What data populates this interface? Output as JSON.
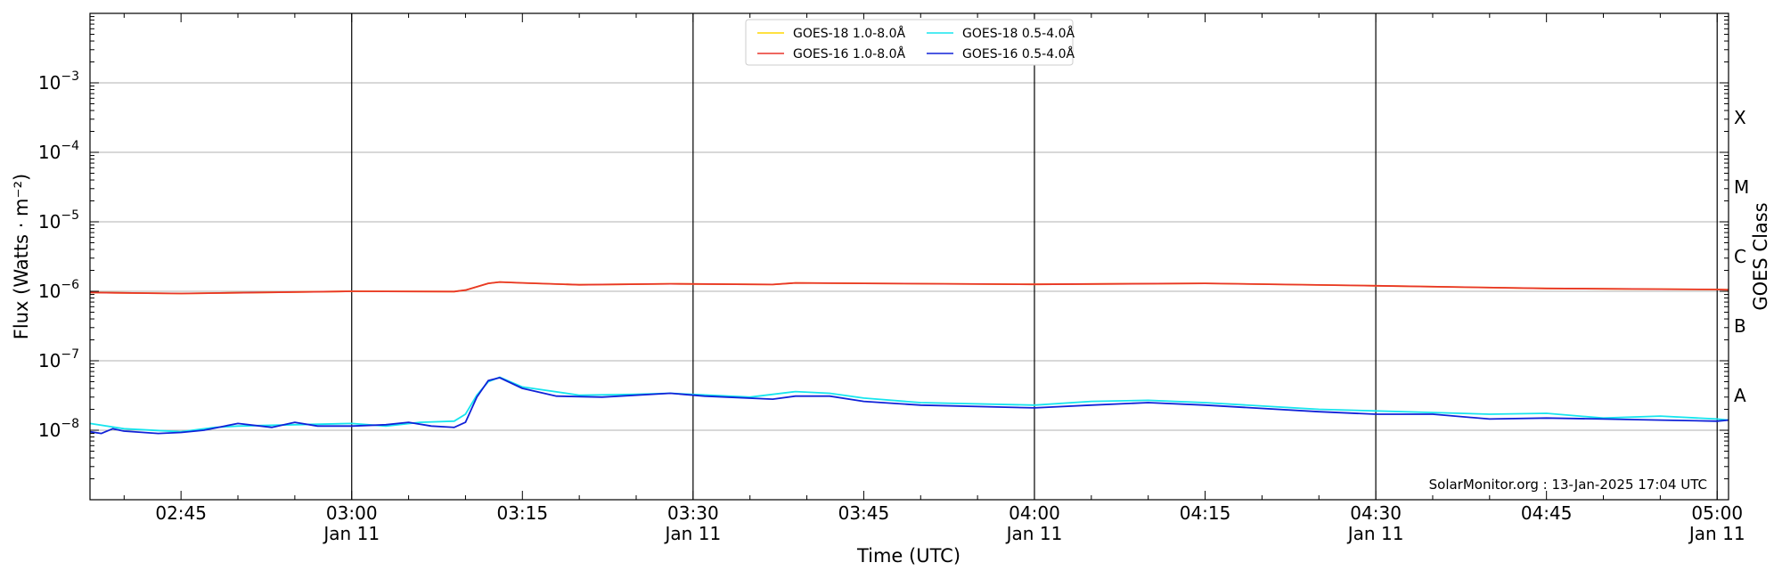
{
  "chart_data": {
    "type": "line",
    "xlabel": "Time (UTC)",
    "ylabel": "Flux (Watts · m⁻²)",
    "ylabel_right": "GOES Class",
    "y_scale": "log",
    "ylim": [
      1e-09,
      0.01
    ],
    "xlim": [
      "02:37",
      "05:01"
    ],
    "grid": "horizontal at major y ticks; vertical lines every 30 minutes",
    "legend_position": "top-center",
    "y_ticks": [
      {
        "value": 1e-08,
        "base": "10",
        "exp": "−8"
      },
      {
        "value": 1e-07,
        "base": "10",
        "exp": "−7"
      },
      {
        "value": 1e-06,
        "base": "10",
        "exp": "−6"
      },
      {
        "value": 1e-05,
        "base": "10",
        "exp": "−5"
      },
      {
        "value": 0.0001,
        "base": "10",
        "exp": "−4"
      },
      {
        "value": 0.001,
        "base": "10",
        "exp": "−3"
      }
    ],
    "x_ticks": [
      {
        "time": "02:45",
        "label": "02:45",
        "sub": ""
      },
      {
        "time": "03:00",
        "label": "03:00",
        "sub": "Jan 11"
      },
      {
        "time": "03:15",
        "label": "03:15",
        "sub": ""
      },
      {
        "time": "03:30",
        "label": "03:30",
        "sub": "Jan 11"
      },
      {
        "time": "03:45",
        "label": "03:45",
        "sub": ""
      },
      {
        "time": "04:00",
        "label": "04:00",
        "sub": "Jan 11"
      },
      {
        "time": "04:15",
        "label": "04:15",
        "sub": ""
      },
      {
        "time": "04:30",
        "label": "04:30",
        "sub": "Jan 11"
      },
      {
        "time": "04:45",
        "label": "04:45",
        "sub": ""
      },
      {
        "time": "05:00",
        "label": "05:00",
        "sub": "Jan 11"
      }
    ],
    "vlines": [
      "03:00",
      "03:30",
      "04:00",
      "04:30",
      "05:00"
    ],
    "goes_classes": [
      {
        "label": "A",
        "value": 3.16e-08
      },
      {
        "label": "B",
        "value": 3.16e-07
      },
      {
        "label": "C",
        "value": 3.16e-06
      },
      {
        "label": "M",
        "value": 3.16e-05
      },
      {
        "label": "X",
        "value": 0.000316
      }
    ],
    "series": [
      {
        "name": "GOES-18 1.0-8.0Å",
        "color": "#ffd700",
        "x": [
          "02:37",
          "02:45",
          "03:00",
          "03:09",
          "03:10",
          "03:12",
          "03:13",
          "03:15",
          "03:20",
          "03:28",
          "03:37",
          "03:39",
          "03:45",
          "04:00",
          "04:15",
          "04:30",
          "04:45",
          "05:00",
          "05:01"
        ],
        "values": [
          9.6e-07,
          9.3e-07,
          1e-06,
          9.9e-07,
          1.04e-06,
          1.3e-06,
          1.36e-06,
          1.32e-06,
          1.24e-06,
          1.28e-06,
          1.25e-06,
          1.32e-06,
          1.3e-06,
          1.26e-06,
          1.3e-06,
          1.2e-06,
          1.1e-06,
          1.06e-06,
          1.05e-06
        ]
      },
      {
        "name": "GOES-16 1.0-8.0Å",
        "color": "#e8352b",
        "x": [
          "02:37",
          "02:45",
          "03:00",
          "03:09",
          "03:10",
          "03:12",
          "03:13",
          "03:15",
          "03:20",
          "03:28",
          "03:37",
          "03:39",
          "03:45",
          "04:00",
          "04:15",
          "04:30",
          "04:45",
          "05:00",
          "05:01"
        ],
        "values": [
          9.6e-07,
          9.3e-07,
          1e-06,
          9.9e-07,
          1.04e-06,
          1.3e-06,
          1.36e-06,
          1.32e-06,
          1.24e-06,
          1.28e-06,
          1.25e-06,
          1.32e-06,
          1.3e-06,
          1.26e-06,
          1.3e-06,
          1.2e-06,
          1.1e-06,
          1.06e-06,
          1.05e-06
        ]
      },
      {
        "name": "GOES-18 0.5-4.0Å",
        "color": "#17e5ee",
        "x": [
          "02:37",
          "02:40",
          "02:45",
          "02:48",
          "02:50",
          "02:55",
          "03:00",
          "03:03",
          "03:06",
          "03:09",
          "03:10",
          "03:11",
          "03:12",
          "03:13",
          "03:15",
          "03:20",
          "03:25",
          "03:28",
          "03:35",
          "03:39",
          "03:42",
          "03:45",
          "03:50",
          "04:00",
          "04:05",
          "04:10",
          "04:15",
          "04:25",
          "04:30",
          "04:35",
          "04:40",
          "04:45",
          "04:50",
          "04:55",
          "05:00",
          "05:01"
        ],
        "values": [
          1.25e-08,
          1.05e-08,
          9.5e-09,
          1.1e-08,
          1.15e-08,
          1.2e-08,
          1.25e-08,
          1.15e-08,
          1.3e-08,
          1.35e-08,
          1.7e-08,
          3.2e-08,
          5e-08,
          5.8e-08,
          4.2e-08,
          3.2e-08,
          3.3e-08,
          3.4e-08,
          3e-08,
          3.6e-08,
          3.4e-08,
          2.9e-08,
          2.5e-08,
          2.3e-08,
          2.6e-08,
          2.7e-08,
          2.5e-08,
          2e-08,
          1.9e-08,
          1.8e-08,
          1.7e-08,
          1.75e-08,
          1.5e-08,
          1.6e-08,
          1.45e-08,
          1.4e-08
        ]
      },
      {
        "name": "GOES-16 0.5-4.0Å",
        "color": "#1022d8",
        "x": [
          "02:37",
          "02:38",
          "02:39",
          "02:40",
          "02:43",
          "02:45",
          "02:47",
          "02:50",
          "02:53",
          "02:55",
          "02:57",
          "03:00",
          "03:03",
          "03:05",
          "03:07",
          "03:09",
          "03:10",
          "03:11",
          "03:12",
          "03:13",
          "03:15",
          "03:18",
          "03:22",
          "03:28",
          "03:31",
          "03:37",
          "03:39",
          "03:42",
          "03:45",
          "03:50",
          "04:00",
          "04:05",
          "04:10",
          "04:15",
          "04:25",
          "04:30",
          "04:35",
          "04:40",
          "04:45",
          "04:50",
          "04:55",
          "05:00",
          "05:01"
        ],
        "values": [
          9.5e-09,
          9e-09,
          1.05e-08,
          9.7e-09,
          9e-09,
          9.3e-09,
          1e-08,
          1.25e-08,
          1.1e-08,
          1.3e-08,
          1.15e-08,
          1.15e-08,
          1.2e-08,
          1.3e-08,
          1.15e-08,
          1.1e-08,
          1.3e-08,
          3e-08,
          5.2e-08,
          5.7e-08,
          4e-08,
          3.1e-08,
          3e-08,
          3.4e-08,
          3.1e-08,
          2.8e-08,
          3.1e-08,
          3.1e-08,
          2.6e-08,
          2.3e-08,
          2.1e-08,
          2.3e-08,
          2.5e-08,
          2.3e-08,
          1.85e-08,
          1.7e-08,
          1.7e-08,
          1.45e-08,
          1.5e-08,
          1.45e-08,
          1.4e-08,
          1.35e-08,
          1.4e-08
        ]
      }
    ],
    "annotation": "SolarMonitor.org : 13-Jan-2025 17:04 UTC"
  }
}
